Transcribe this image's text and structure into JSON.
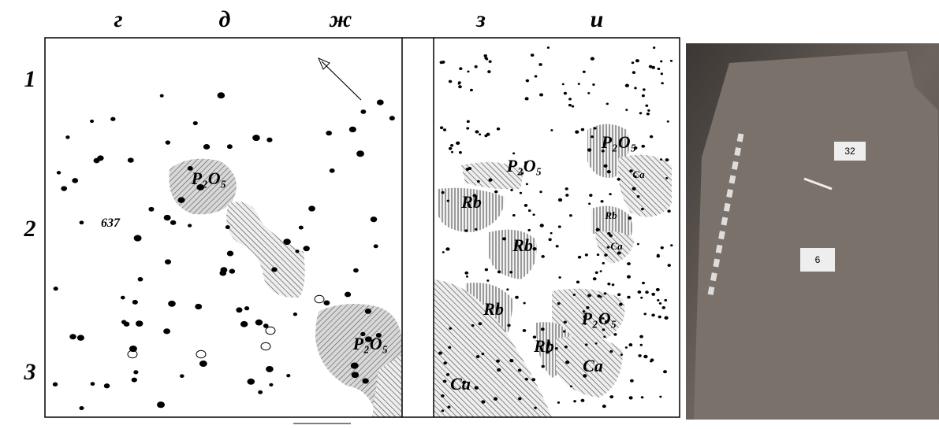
{
  "column_labels": [
    "г",
    "д",
    "ж",
    "з",
    "и"
  ],
  "row_labels": [
    "1",
    "2",
    "3"
  ],
  "left_plan": {
    "labels": [
      "P₂O₅",
      "637",
      "P₂O₅"
    ]
  },
  "right_plan": {
    "labels": [
      "P₂O₅",
      "P₂O₅",
      "Rb",
      "Rb",
      "Rb",
      "Ca",
      "Ca",
      "Rb",
      "P₂O₅",
      "Rb",
      "Ca",
      "Ca"
    ]
  },
  "photo": {
    "tags": [
      "32",
      "6"
    ]
  }
}
